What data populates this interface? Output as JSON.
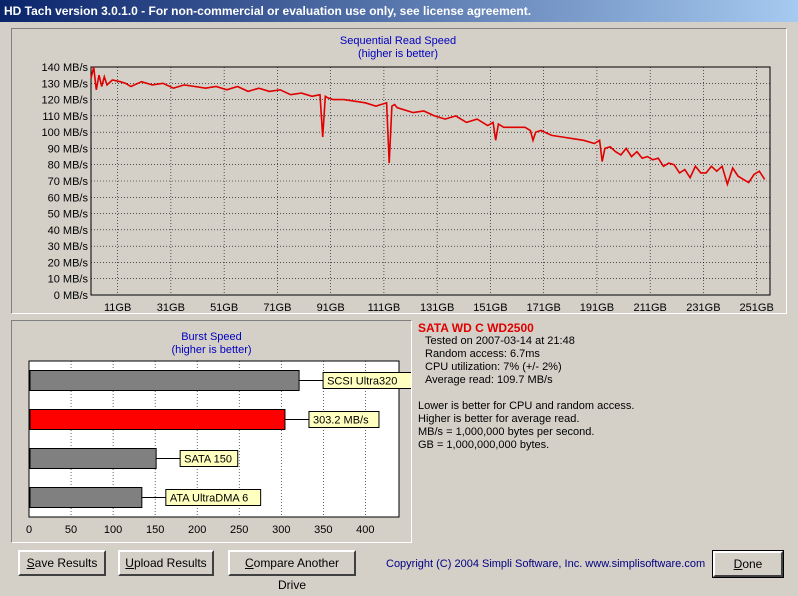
{
  "window": {
    "title": "HD Tach version 3.0.1.0  - For non-commercial or evaluation use only, see license agreement."
  },
  "colors": {
    "read_line": "#e00000",
    "accent_bar": "#ff0000",
    "gray_bar": "#808080",
    "title_blue": "#0000c0",
    "label_bg": "#ffffc0"
  },
  "chart_data": [
    {
      "type": "line",
      "title": "Sequential Read Speed",
      "subtitle": "(higher is better)",
      "xlim": [
        1,
        256
      ],
      "ylim": [
        0,
        140
      ],
      "yticks": [
        0,
        10,
        20,
        30,
        40,
        50,
        60,
        70,
        80,
        90,
        100,
        110,
        120,
        130,
        140
      ],
      "ytick_labels": [
        "0 MB/s",
        "10 MB/s",
        "20 MB/s",
        "30 MB/s",
        "40 MB/s",
        "50 MB/s",
        "60 MB/s",
        "70 MB/s",
        "80 MB/s",
        "90 MB/s",
        "100 MB/s",
        "110 MB/s",
        "120 MB/s",
        "130 MB/s",
        "140 MB/s"
      ],
      "xticks": [
        11,
        31,
        51,
        71,
        91,
        111,
        131,
        151,
        171,
        191,
        211,
        231,
        251
      ],
      "xtick_labels": [
        "11GB",
        "31GB",
        "51GB",
        "71GB",
        "91GB",
        "111GB",
        "131GB",
        "151GB",
        "171GB",
        "191GB",
        "211GB",
        "231GB",
        "251GB"
      ],
      "grid": true,
      "series": [
        {
          "x": [
            1,
            2,
            3,
            4,
            5,
            6,
            7,
            9,
            12,
            14,
            16,
            20,
            24,
            28,
            32,
            36,
            40,
            44,
            48,
            52,
            56,
            60,
            64,
            68,
            72,
            76,
            80,
            84,
            87,
            88,
            89,
            90,
            92,
            96,
            100,
            104,
            108,
            112,
            113,
            114,
            115,
            116,
            118,
            122,
            126,
            130,
            134,
            138,
            142,
            146,
            150,
            152,
            153,
            154,
            156,
            160,
            164,
            166,
            167,
            168,
            170,
            174,
            178,
            182,
            186,
            190,
            192,
            193,
            194,
            196,
            198,
            200,
            202,
            204,
            206,
            208,
            210,
            212,
            214,
            216,
            218,
            220,
            222,
            224,
            226,
            228,
            230,
            232,
            234,
            236,
            238,
            240,
            242,
            244,
            246,
            248,
            250,
            252,
            254
          ],
          "y": [
            133,
            140,
            126,
            135,
            128,
            134,
            129,
            132,
            131,
            130,
            128,
            131,
            129,
            130,
            127,
            129,
            128,
            127,
            128,
            126,
            128,
            125,
            127,
            125,
            126,
            123,
            124,
            122,
            123,
            97,
            122,
            121,
            120,
            120,
            119,
            118,
            116,
            118,
            81,
            116,
            117,
            115,
            114,
            112,
            113,
            110,
            108,
            110,
            106,
            108,
            104,
            106,
            95,
            105,
            103,
            103,
            103,
            101,
            95,
            100,
            101,
            98,
            97,
            96,
            95,
            93,
            95,
            82,
            90,
            91,
            88,
            86,
            90,
            85,
            88,
            84,
            85,
            83,
            84,
            79,
            81,
            80,
            75,
            77,
            72,
            79,
            75,
            75,
            79,
            76,
            79,
            68,
            78,
            73,
            71,
            69,
            74,
            76,
            71
          ]
        }
      ]
    },
    {
      "type": "bar",
      "orientation": "horizontal",
      "title": "Burst Speed",
      "subtitle": "(higher is better)",
      "xlim": [
        0,
        440
      ],
      "xticks": [
        0,
        50,
        100,
        150,
        200,
        250,
        300,
        350,
        400
      ],
      "xtick_labels": [
        "0",
        "50",
        "100",
        "150",
        "200",
        "250",
        "300",
        "350",
        "400"
      ],
      "grid": true,
      "categories": [
        "SCSI Ultra320",
        "303.2 MB/s",
        "SATA 150",
        "ATA UltraDMA 6"
      ],
      "values": [
        320,
        303.2,
        150,
        133
      ],
      "highlight": [
        false,
        true,
        false,
        false
      ]
    }
  ],
  "info": {
    "drive_name": "SATA WD C WD2500",
    "tested_on": "Tested on 2007-03-14 at 21:48",
    "random_access": "Random access: 6.7ms",
    "cpu_utilization": "CPU utilization: 7% (+/- 2%)",
    "average_read": "Average read: 109.7 MB/s",
    "notes": [
      "Lower is better for CPU and random access.",
      "Higher is better for average read.",
      "MB/s = 1,000,000 bytes per second.",
      "GB = 1,000,000,000 bytes."
    ]
  },
  "buttons": {
    "save": {
      "underline": "S",
      "rest": "ave Results"
    },
    "upload": {
      "underline": "U",
      "rest": "pload Results"
    },
    "compare": {
      "underline": "C",
      "rest": "ompare Another Drive"
    },
    "done": {
      "underline": "D",
      "rest": "one"
    }
  },
  "copyright": "Copyright (C) 2004 Simpli Software, Inc. www.simplisoftware.com"
}
